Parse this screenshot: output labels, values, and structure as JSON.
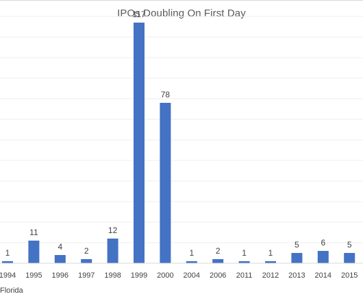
{
  "chart_data": {
    "type": "bar",
    "title": "IPOs Doubling On First Day",
    "categories": [
      "1994",
      "1995",
      "1996",
      "1997",
      "1998",
      "1999",
      "2000",
      "2004",
      "2006",
      "2011",
      "2012",
      "2013",
      "2014",
      "2015"
    ],
    "values": [
      1,
      11,
      4,
      2,
      12,
      117,
      78,
      1,
      2,
      1,
      1,
      5,
      6,
      5
    ],
    "data_labels": [
      "1",
      "11",
      "4",
      "2",
      "12",
      "117",
      "78",
      "1",
      "2",
      "1",
      "1",
      "5",
      "6",
      "5"
    ],
    "ylim": [
      0,
      120
    ],
    "grid": true,
    "bar_color": "#4472c4",
    "source_text": "Florida"
  }
}
